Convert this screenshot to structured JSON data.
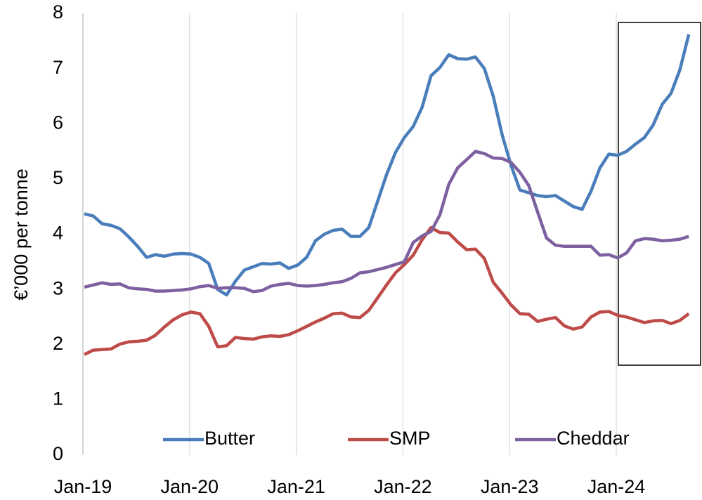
{
  "chart_data": {
    "type": "line",
    "ylabel": "€’000 per tonne",
    "categories": [
      "Jan-19",
      null,
      null,
      null,
      null,
      null,
      null,
      null,
      null,
      null,
      null,
      null,
      "Jan-20",
      null,
      null,
      null,
      null,
      null,
      null,
      null,
      null,
      null,
      null,
      null,
      "Jan-21",
      null,
      null,
      null,
      null,
      null,
      null,
      null,
      null,
      null,
      null,
      null,
      "Jan-22",
      null,
      null,
      null,
      null,
      null,
      null,
      null,
      null,
      null,
      null,
      null,
      "Jan-23",
      null,
      null,
      null,
      null,
      null,
      null,
      null,
      null,
      null,
      null,
      null,
      "Jan-24",
      null,
      null,
      null,
      null,
      null,
      null,
      null,
      null
    ],
    "series": [
      {
        "name": "Butter",
        "color": "#4a7ebb",
        "values": [
          4.37,
          4.33,
          4.19,
          4.16,
          4.1,
          3.95,
          3.78,
          3.58,
          3.63,
          3.6,
          3.64,
          3.65,
          3.64,
          3.58,
          3.47,
          3.0,
          2.9,
          3.15,
          3.35,
          3.41,
          3.47,
          3.46,
          3.48,
          3.38,
          3.44,
          3.58,
          3.88,
          4.0,
          4.07,
          4.09,
          3.96,
          3.96,
          4.12,
          4.6,
          5.08,
          5.48,
          5.75,
          5.95,
          6.3,
          6.87,
          7.02,
          7.25,
          7.18,
          7.17,
          7.21,
          7.0,
          6.5,
          5.8,
          5.25,
          4.8,
          4.75,
          4.7,
          4.68,
          4.7,
          4.6,
          4.5,
          4.45,
          4.78,
          5.2,
          5.45,
          5.43,
          5.5,
          5.63,
          5.75,
          5.98,
          6.35,
          6.55,
          6.98,
          7.62
        ]
      },
      {
        "name": "SMP",
        "color": "#be4b48",
        "values": [
          1.82,
          1.9,
          1.91,
          1.92,
          2.01,
          2.05,
          2.06,
          2.08,
          2.17,
          2.32,
          2.45,
          2.54,
          2.59,
          2.56,
          2.33,
          1.96,
          1.98,
          2.13,
          2.11,
          2.1,
          2.14,
          2.16,
          2.15,
          2.18,
          2.25,
          2.33,
          2.41,
          2.48,
          2.56,
          2.57,
          2.5,
          2.49,
          2.62,
          2.85,
          3.08,
          3.3,
          3.45,
          3.62,
          3.9,
          4.12,
          4.03,
          4.02,
          3.86,
          3.72,
          3.73,
          3.56,
          3.13,
          2.93,
          2.72,
          2.56,
          2.55,
          2.42,
          2.46,
          2.49,
          2.34,
          2.28,
          2.32,
          2.5,
          2.59,
          2.6,
          2.53,
          2.5,
          2.45,
          2.4,
          2.43,
          2.44,
          2.38,
          2.44,
          2.56
        ]
      },
      {
        "name": "Cheddar",
        "color": "#7d60a0",
        "values": [
          3.04,
          3.08,
          3.12,
          3.09,
          3.1,
          3.03,
          3.01,
          3.0,
          2.97,
          2.97,
          2.98,
          2.99,
          3.01,
          3.05,
          3.07,
          3.02,
          3.03,
          3.03,
          3.02,
          2.96,
          2.98,
          3.06,
          3.09,
          3.11,
          3.07,
          3.06,
          3.07,
          3.09,
          3.12,
          3.14,
          3.2,
          3.3,
          3.32,
          3.36,
          3.4,
          3.45,
          3.5,
          3.85,
          3.97,
          4.05,
          4.35,
          4.9,
          5.2,
          5.35,
          5.5,
          5.46,
          5.38,
          5.37,
          5.3,
          5.12,
          4.88,
          4.4,
          3.93,
          3.8,
          3.78,
          3.78,
          3.78,
          3.78,
          3.62,
          3.63,
          3.57,
          3.66,
          3.88,
          3.92,
          3.91,
          3.88,
          3.89,
          3.91,
          3.96
        ]
      }
    ],
    "ylim": [
      0,
      8
    ],
    "yticks": [
      0,
      1,
      2,
      3,
      4,
      5,
      6,
      7,
      8
    ],
    "grid": true,
    "legend": "bottom"
  }
}
